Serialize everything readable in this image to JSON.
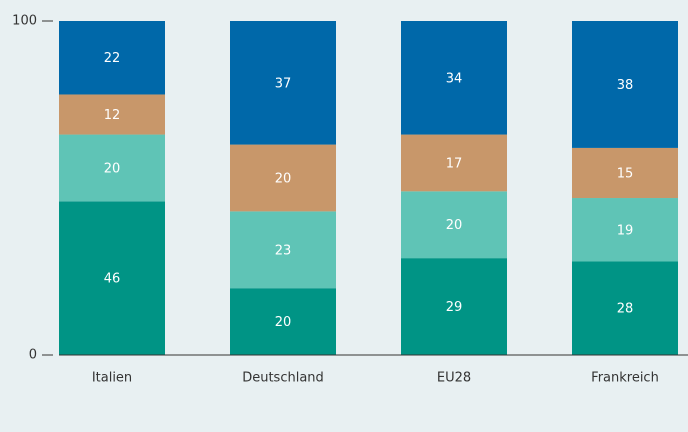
{
  "chart_data": {
    "type": "stacked_bar",
    "categories": [
      "Italien",
      "Deutschland",
      "EU28",
      "Frankreich"
    ],
    "series": [
      {
        "color": "#009485",
        "values": [
          46,
          20,
          29,
          28
        ]
      },
      {
        "color": "#5fc4b6",
        "values": [
          20,
          23,
          20,
          19
        ]
      },
      {
        "color": "#c8976a",
        "values": [
          12,
          20,
          17,
          15
        ]
      },
      {
        "color": "#0068a9",
        "values": [
          22,
          37,
          34,
          38
        ]
      }
    ],
    "ylim": [
      0,
      100
    ],
    "yticks": [
      0,
      100
    ],
    "grid": false
  }
}
